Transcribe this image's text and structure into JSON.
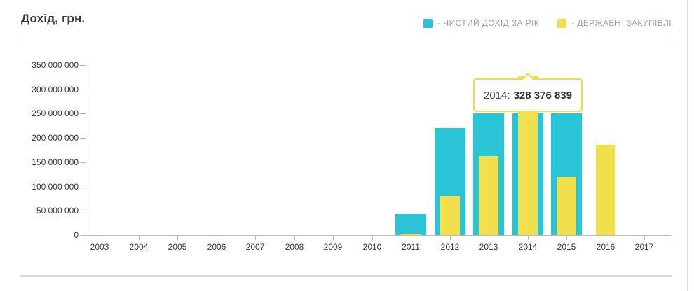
{
  "header": {
    "title": "Дохід, грн."
  },
  "legend": {
    "items": [
      {
        "label": "- ЧИСТИЙ ДОХІД ЗА РІК",
        "color": "#29c4d6"
      },
      {
        "label": "- ДЕРЖАВНІ ЗАКУПІВЛІ",
        "color": "#f2df4e"
      }
    ]
  },
  "tooltip": {
    "category": "2014",
    "label": "2014:",
    "value": "328 376 839"
  },
  "chart_data": {
    "type": "bar",
    "title": "Дохід, грн.",
    "categories": [
      "2003",
      "2004",
      "2005",
      "2006",
      "2007",
      "2008",
      "2009",
      "2010",
      "2011",
      "2012",
      "2013",
      "2014",
      "2015",
      "2016",
      "2017"
    ],
    "series": [
      {
        "name": "ЧИСТИЙ ДОХІД ЗА РІК",
        "color": "#29c4d6",
        "values": [
          null,
          null,
          null,
          null,
          null,
          null,
          null,
          null,
          43000000,
          220000000,
          250000000,
          250000000,
          250000000,
          null,
          null
        ]
      },
      {
        "name": "ДЕРЖАВНІ ЗАКУПІВЛІ",
        "color": "#f2df4e",
        "values": [
          null,
          null,
          null,
          null,
          null,
          null,
          null,
          null,
          3500000,
          81000000,
          163000000,
          328376839,
          119000000,
          186000000,
          null
        ]
      }
    ],
    "ylim": [
      0,
      350000000
    ],
    "ytick_labels_top_to_bottom": [
      "350 000 000",
      "300 000 000",
      "250 000 000",
      "200 000 000",
      "150 000 000",
      "100 000 000",
      "50 000 000",
      "0"
    ],
    "grid": false,
    "legend_position": "top-right",
    "tooltip_annotation": {
      "category": "2014",
      "series": "ДЕРЖАВНІ ЗАКУПІВЛІ",
      "text": "2014: 328 376 839",
      "value": 328376839
    }
  },
  "colors": {
    "axis": "#b9b9b9",
    "tick_label": "#3a3a3a",
    "legend_text": "#99a3ab",
    "divider": "#dcdcdc",
    "tooltip_border": "#f2da4d"
  }
}
